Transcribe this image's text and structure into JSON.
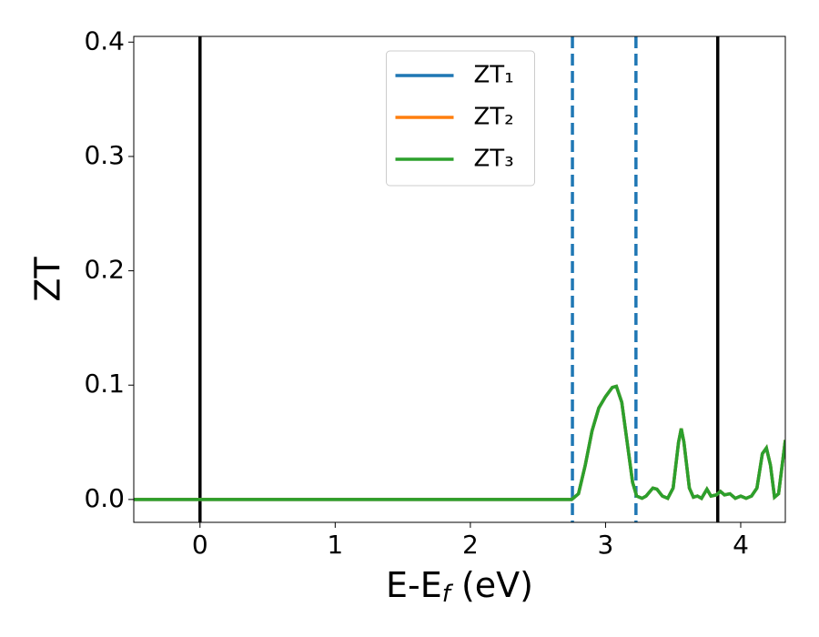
{
  "chart_data": {
    "type": "line",
    "xlabel": [
      "E-E",
      "f",
      " (eV)"
    ],
    "ylabel": "ZT",
    "x": [
      -0.49,
      0,
      1,
      2,
      2.75,
      2.8,
      2.85,
      2.9,
      2.95,
      3.0,
      3.05,
      3.08,
      3.12,
      3.16,
      3.2,
      3.23,
      3.27,
      3.3,
      3.35,
      3.38,
      3.42,
      3.46,
      3.5,
      3.54,
      3.56,
      3.58,
      3.62,
      3.65,
      3.68,
      3.71,
      3.75,
      3.78,
      3.82,
      3.85,
      3.88,
      3.92,
      3.96,
      4.0,
      4.04,
      4.08,
      4.12,
      4.16,
      4.19,
      4.22,
      4.25,
      4.28,
      4.33
    ],
    "series": [
      {
        "name": "ZT₁",
        "color": "#1f77b4",
        "values": [
          0,
          0,
          0,
          0,
          0,
          0.005,
          0.03,
          0.06,
          0.08,
          0.09,
          0.098,
          0.099,
          0.085,
          0.05,
          0.015,
          0.003,
          0.001,
          0.003,
          0.01,
          0.009,
          0.003,
          0.001,
          0.01,
          0.05,
          0.062,
          0.05,
          0.01,
          0.002,
          0.003,
          0.001,
          0.009,
          0.003,
          0.004,
          0.007,
          0.004,
          0.005,
          0.001,
          0.003,
          0.001,
          0.003,
          0.01,
          0.04,
          0.045,
          0.03,
          0.002,
          0.005,
          0.052
        ]
      },
      {
        "name": "ZT₂",
        "color": "#ff7f0e",
        "values": [
          0,
          0,
          0,
          0,
          0,
          0.005,
          0.03,
          0.06,
          0.08,
          0.09,
          0.098,
          0.099,
          0.085,
          0.05,
          0.015,
          0.003,
          0.001,
          0.003,
          0.01,
          0.009,
          0.003,
          0.001,
          0.01,
          0.05,
          0.062,
          0.05,
          0.01,
          0.002,
          0.003,
          0.001,
          0.009,
          0.003,
          0.004,
          0.007,
          0.004,
          0.005,
          0.001,
          0.003,
          0.001,
          0.003,
          0.01,
          0.04,
          0.045,
          0.03,
          0.002,
          0.005,
          0.052
        ]
      },
      {
        "name": "ZT₃",
        "color": "#2ca02c",
        "values": [
          0,
          0,
          0,
          0,
          0,
          0.005,
          0.03,
          0.06,
          0.08,
          0.09,
          0.098,
          0.099,
          0.085,
          0.05,
          0.015,
          0.003,
          0.001,
          0.003,
          0.01,
          0.009,
          0.003,
          0.001,
          0.01,
          0.05,
          0.062,
          0.05,
          0.01,
          0.002,
          0.003,
          0.001,
          0.009,
          0.003,
          0.004,
          0.007,
          0.004,
          0.005,
          0.001,
          0.003,
          0.001,
          0.003,
          0.01,
          0.04,
          0.045,
          0.03,
          0.002,
          0.005,
          0.052
        ]
      }
    ],
    "vlines": [
      {
        "x": 0,
        "color": "#000000",
        "dashed": false
      },
      {
        "x": 2.755,
        "color": "#1f77b4",
        "dashed": true
      },
      {
        "x": 3.225,
        "color": "#1f77b4",
        "dashed": true
      },
      {
        "x": 3.83,
        "color": "#000000",
        "dashed": false
      }
    ],
    "xlim": [
      -0.49,
      4.33
    ],
    "xticks": [
      0,
      1,
      2,
      3,
      4
    ],
    "ylim": [
      -0.02,
      0.405
    ],
    "yticks": [
      {
        "value": 0,
        "label": "0.0"
      },
      0.1,
      0.2,
      0.3,
      0.4
    ],
    "legend": "upper center",
    "grid": false
  }
}
